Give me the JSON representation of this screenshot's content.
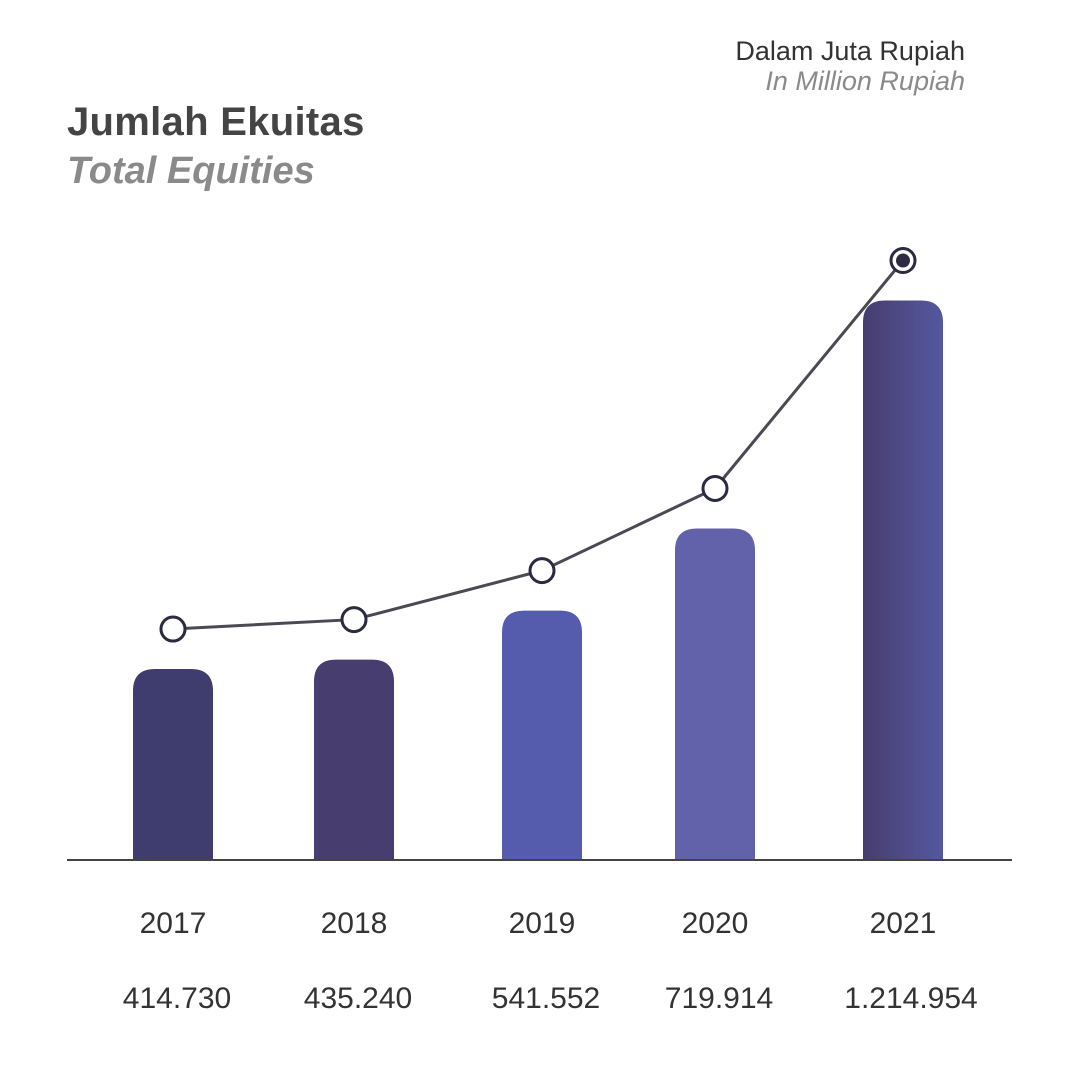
{
  "header": {
    "title": "Jumlah Ekuitas",
    "subtitle": "Total Equities",
    "unit": "Dalam Juta Rupiah",
    "unit_en": "In Million Rupiah"
  },
  "chart_data": {
    "type": "bar",
    "title": "Jumlah Ekuitas",
    "subtitle": "Total Equities",
    "categories": [
      "2017",
      "2018",
      "2019",
      "2020",
      "2021"
    ],
    "values": [
      414730,
      435240,
      541552,
      719914,
      1214954
    ],
    "value_labels": [
      "414.730",
      "435.240",
      "541.552",
      "719.914",
      "1.214.954"
    ],
    "overlay": "line",
    "highlight_index": 4,
    "grid": false,
    "legend": "none",
    "colors": {
      "bars": [
        "#3f3c6e",
        "#483d6f",
        "#565cad",
        "#6262aa",
        "#4f4f9a"
      ],
      "bar_gradient_2021": [
        "#463d6e",
        "#5558a0"
      ],
      "line": "#4a4a55",
      "axis": "#444444",
      "marker_fill": "#ffffff",
      "marker_stroke": "#2a2a40",
      "highlight_dot": "#2e2a45"
    }
  }
}
